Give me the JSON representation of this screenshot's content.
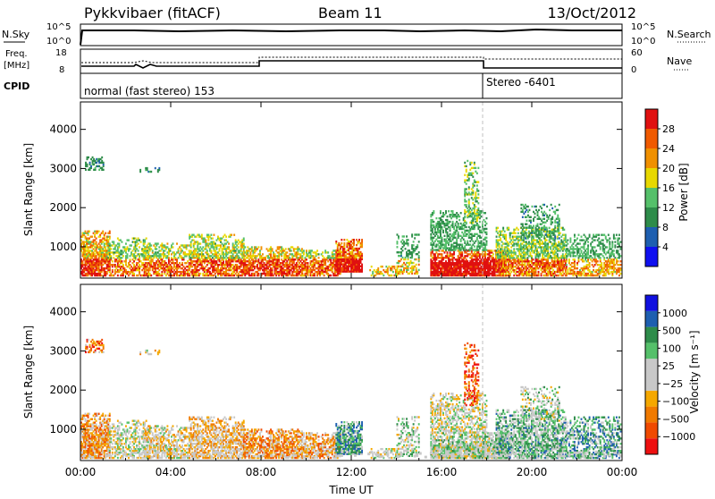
{
  "header": {
    "station": "Pykkvibaer (fitACF)",
    "beam": "Beam 11",
    "date": "13/Oct/2012"
  },
  "top_panels": {
    "nsky": {
      "left_label": "N.Sky",
      "right_label": "N.Search",
      "ticks_left": [
        "10^5",
        "10^0"
      ],
      "ticks_right": [
        "10^5",
        "10^0"
      ]
    },
    "freq": {
      "left_label_line1": "Freq.",
      "left_label_line2": "[MHz]",
      "right_label": "Nave",
      "ticks_left": [
        "18",
        "8"
      ],
      "ticks_right": [
        "60",
        "0"
      ]
    },
    "cpid": {
      "label": "CPID",
      "segments": [
        "normal (fast stereo) 153",
        "Stereo -6401"
      ]
    }
  },
  "colors": {
    "power": [
      "#1010f0",
      "#1e5fb0",
      "#2e8c4a",
      "#55c06a",
      "#e8d800",
      "#f09000",
      "#f05a00",
      "#e01010"
    ],
    "velocity": [
      "#ee1010",
      "#f04a00",
      "#f07a00",
      "#f5a800",
      "#c8c8c8",
      "#c8c8c8",
      "#55c06a",
      "#2e8c4a",
      "#1e5fb0",
      "#1010e0"
    ]
  },
  "chart_data": [
    {
      "type": "heatmap",
      "name": "power",
      "ylabel": "Slant Range [km]",
      "xlabel": "",
      "x_ticks": [
        "00:00",
        "04:00",
        "08:00",
        "12:00",
        "16:00",
        "20:00",
        "00:00"
      ],
      "y_ticks": [
        1000,
        2000,
        3000,
        4000
      ],
      "ylim": [
        200,
        4700
      ],
      "xlim_hours": [
        0,
        24
      ],
      "colorbar_label": "Power [dB]",
      "colorbar_ticks": [
        "4",
        "8",
        "12",
        "16",
        "20",
        "24",
        "28"
      ]
    },
    {
      "type": "heatmap",
      "name": "velocity",
      "ylabel": "Slant Range [km]",
      "xlabel": "Time UT",
      "x_ticks": [
        "00:00",
        "04:00",
        "08:00",
        "12:00",
        "16:00",
        "20:00",
        "00:00"
      ],
      "y_ticks": [
        1000,
        2000,
        3000,
        4000
      ],
      "ylim": [
        200,
        4700
      ],
      "xlim_hours": [
        0,
        24
      ],
      "colorbar_label": "Velocity [m s⁻¹]",
      "colorbar_ticks": [
        "1000",
        "500",
        "100",
        "25",
        "−25",
        "−100",
        "−500",
        "−1000"
      ]
    }
  ]
}
